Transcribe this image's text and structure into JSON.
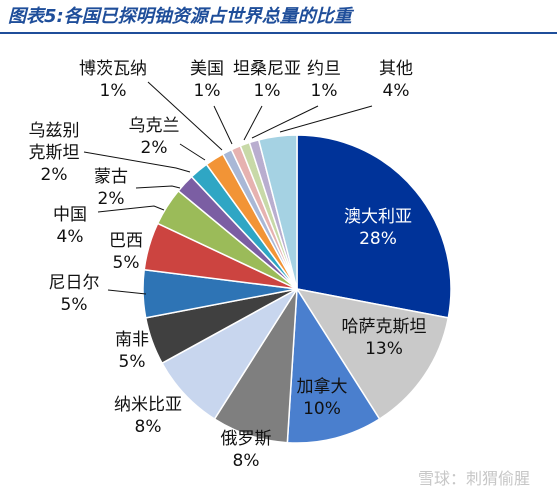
{
  "colors": {
    "title": "#1f4e9a",
    "rule": "#1f4e9a",
    "watermark": "#c7c7c7"
  },
  "watermark": "雪球：刺猬偷腥",
  "chart_data": {
    "type": "pie",
    "title": "图表5:各国已探明铀资源占世界总量的比重",
    "series": [
      {
        "label": "澳大利亚",
        "percent_text": "28%",
        "value": 28,
        "color": "#003399",
        "label_color": "#ffffff"
      },
      {
        "label": "哈萨克斯坦",
        "percent_text": "13%",
        "value": 13,
        "color": "#c9c9c9",
        "label_color": "#111111"
      },
      {
        "label": "加拿大",
        "percent_text": "10%",
        "value": 10,
        "color": "#4a7fce",
        "label_color": "#111111"
      },
      {
        "label": "俄罗斯",
        "percent_text": "8%",
        "value": 8,
        "color": "#7f7f7f",
        "label_color": "#111111"
      },
      {
        "label": "纳米比亚",
        "percent_text": "8%",
        "value": 8,
        "color": "#c8d6ee",
        "label_color": "#111111"
      },
      {
        "label": "南非",
        "percent_text": "5%",
        "value": 5,
        "color": "#404040",
        "label_color": "#111111"
      },
      {
        "label": "尼日尔",
        "percent_text": "5%",
        "value": 5,
        "color": "#2e74b5",
        "label_color": "#111111"
      },
      {
        "label": "巴西",
        "percent_text": "5%",
        "value": 5,
        "color": "#cc4440",
        "label_color": "#111111"
      },
      {
        "label": "中国",
        "percent_text": "4%",
        "value": 4,
        "color": "#9bbb59",
        "label_color": "#111111"
      },
      {
        "label": "蒙古",
        "percent_text": "2%",
        "value": 2,
        "color": "#7b5ea3",
        "label_color": "#111111"
      },
      {
        "label": "乌兹别克斯坦",
        "percent_text": "2%",
        "value": 2,
        "color": "#2fa6c4",
        "label_color": "#111111"
      },
      {
        "label": "乌克兰",
        "percent_text": "2%",
        "value": 2,
        "color": "#f29436",
        "label_color": "#111111"
      },
      {
        "label": "博茨瓦纳",
        "percent_text": "1%",
        "value": 1,
        "color": "#a9b8d6",
        "label_color": "#111111"
      },
      {
        "label": "美国",
        "percent_text": "1%",
        "value": 1,
        "color": "#e6b2b0",
        "label_color": "#111111"
      },
      {
        "label": "坦桑尼亚",
        "percent_text": "1%",
        "value": 1,
        "color": "#c8d9a8",
        "label_color": "#111111"
      },
      {
        "label": "约旦",
        "percent_text": "1%",
        "value": 1,
        "color": "#b9aecf",
        "label_color": "#111111"
      },
      {
        "label": "其他",
        "percent_text": "4%",
        "value": 4,
        "color": "#a5d2e3",
        "label_color": "#111111"
      }
    ]
  }
}
